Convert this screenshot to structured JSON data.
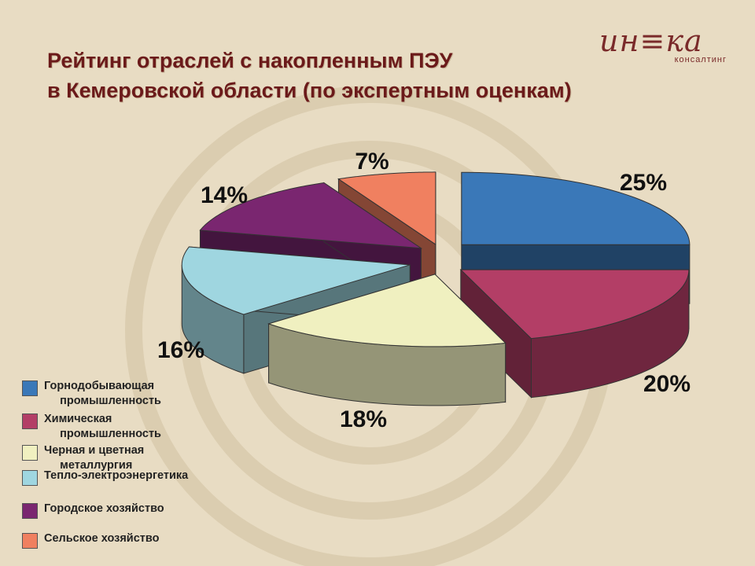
{
  "title": {
    "line1": "Рейтинг отраслей с накопленным ПЭУ",
    "line2": "в Кемеровской области (по экспертным оценкам)"
  },
  "logo": {
    "text": "ин≡ка",
    "subtitle": "консалтинг"
  },
  "chart_data": {
    "type": "pie",
    "title": "Рейтинг отраслей с накопленным ПЭУ в Кемеровской области (по экспертным оценкам)",
    "categories": [
      "Горнодобывающая промышленность",
      "Химическая промышленность",
      "Черная и цветная металлургия",
      "Тепло-электроэнергетика",
      "Городское хозяйство",
      "Сельское хозяйство"
    ],
    "values": [
      25,
      20,
      18,
      16,
      14,
      7
    ],
    "labels": [
      "25%",
      "20%",
      "18%",
      "16%",
      "14%",
      "7%"
    ],
    "colors": [
      "#3a78b8",
      "#b33e66",
      "#f0f0c0",
      "#9fd6e0",
      "#7a2670",
      "#f08060"
    ],
    "legend_placement": "bottom-left",
    "exploded": true,
    "three_d": true
  },
  "legend": [
    {
      "line1": "Горнодобывающая",
      "line2": "промышленность",
      "color": "#3a78b8"
    },
    {
      "line1": "Химическая",
      "line2": "промышленность",
      "color": "#b33e66"
    },
    {
      "line1": "Черная и цветная",
      "line2": "металлургия",
      "color": "#f0f0c0"
    },
    {
      "line1": "Тепло-электроэнергетика",
      "line2": "",
      "color": "#9fd6e0"
    },
    {
      "line1": "Городское хозяйство",
      "line2": "",
      "color": "#7a2670"
    },
    {
      "line1": "Сельское хозяйство",
      "line2": "",
      "color": "#f08060"
    }
  ]
}
